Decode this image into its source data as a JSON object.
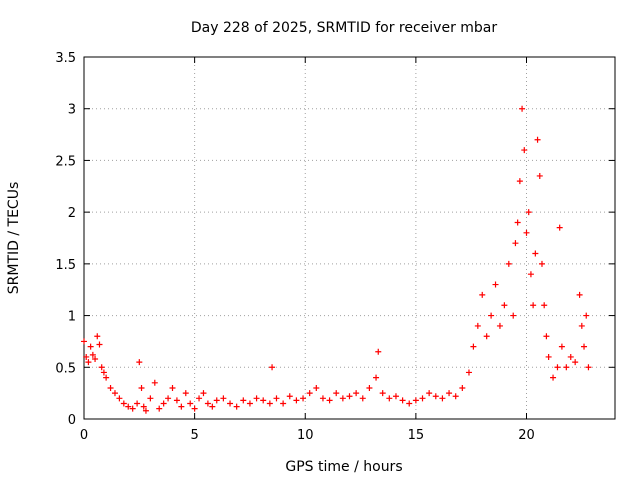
{
  "chart_data": {
    "type": "scatter",
    "title": "Day 228 of 2025, SRMTID for receiver mbar",
    "xlabel": "GPS time / hours",
    "ylabel": "SRMTID / TECUs",
    "xlim": [
      0,
      24
    ],
    "ylim": [
      0,
      3.5
    ],
    "xticks": [
      0,
      5,
      10,
      15,
      20
    ],
    "yticks": [
      0,
      0.5,
      1,
      1.5,
      2,
      2.5,
      3,
      3.5
    ],
    "xtick_labels": [
      "0",
      "5",
      "10",
      "15",
      "20"
    ],
    "ytick_labels": [
      "0",
      "0.5",
      "1",
      "1.5",
      "2",
      "2.5",
      "3",
      "3.5"
    ],
    "grid": true,
    "marker": "+",
    "color": "#ff0000",
    "series": [
      {
        "name": "SRMTID",
        "x": [
          0.0,
          0.1,
          0.2,
          0.3,
          0.4,
          0.5,
          0.6,
          0.7,
          0.8,
          0.9,
          1.0,
          1.2,
          1.4,
          1.6,
          1.8,
          2.0,
          2.2,
          2.4,
          2.5,
          2.6,
          2.7,
          2.8,
          3.0,
          3.2,
          3.4,
          3.6,
          3.8,
          4.0,
          4.2,
          4.4,
          4.6,
          4.8,
          5.0,
          5.2,
          5.4,
          5.6,
          5.8,
          6.0,
          6.3,
          6.6,
          6.9,
          7.2,
          7.5,
          7.8,
          8.1,
          8.4,
          8.5,
          8.7,
          9.0,
          9.3,
          9.6,
          9.9,
          10.2,
          10.5,
          10.8,
          11.1,
          11.4,
          11.7,
          12.0,
          12.3,
          12.6,
          12.9,
          13.2,
          13.3,
          13.5,
          13.8,
          14.1,
          14.4,
          14.7,
          15.0,
          15.3,
          15.6,
          15.9,
          16.2,
          16.5,
          16.8,
          17.1,
          17.4,
          17.6,
          17.8,
          18.0,
          18.2,
          18.4,
          18.6,
          18.8,
          19.0,
          19.2,
          19.4,
          19.5,
          19.6,
          19.7,
          19.8,
          19.9,
          20.0,
          20.1,
          20.2,
          20.3,
          20.4,
          20.5,
          20.6,
          20.7,
          20.8,
          20.9,
          21.0,
          21.2,
          21.4,
          21.5,
          21.6,
          21.8,
          22.0,
          22.2,
          22.4,
          22.5,
          22.6,
          22.7,
          22.8
        ],
        "y": [
          0.75,
          0.6,
          0.55,
          0.7,
          0.62,
          0.58,
          0.8,
          0.72,
          0.5,
          0.45,
          0.4,
          0.3,
          0.25,
          0.2,
          0.15,
          0.12,
          0.1,
          0.15,
          0.55,
          0.3,
          0.12,
          0.08,
          0.2,
          0.35,
          0.1,
          0.15,
          0.2,
          0.3,
          0.18,
          0.12,
          0.25,
          0.15,
          0.1,
          0.2,
          0.25,
          0.15,
          0.12,
          0.18,
          0.2,
          0.15,
          0.12,
          0.18,
          0.15,
          0.2,
          0.18,
          0.15,
          0.5,
          0.2,
          0.15,
          0.22,
          0.18,
          0.2,
          0.25,
          0.3,
          0.2,
          0.18,
          0.25,
          0.2,
          0.22,
          0.25,
          0.2,
          0.3,
          0.4,
          0.65,
          0.25,
          0.2,
          0.22,
          0.18,
          0.15,
          0.18,
          0.2,
          0.25,
          0.22,
          0.2,
          0.25,
          0.22,
          0.3,
          0.45,
          0.7,
          0.9,
          1.2,
          0.8,
          1.0,
          1.3,
          0.9,
          1.1,
          1.5,
          1.0,
          1.7,
          1.9,
          2.3,
          3.0,
          2.6,
          1.8,
          2.0,
          1.4,
          1.1,
          1.6,
          2.7,
          2.35,
          1.5,
          1.1,
          0.8,
          0.6,
          0.4,
          0.5,
          1.85,
          0.7,
          0.5,
          0.6,
          0.55,
          1.2,
          0.9,
          0.7,
          1.0,
          0.5
        ]
      }
    ]
  }
}
